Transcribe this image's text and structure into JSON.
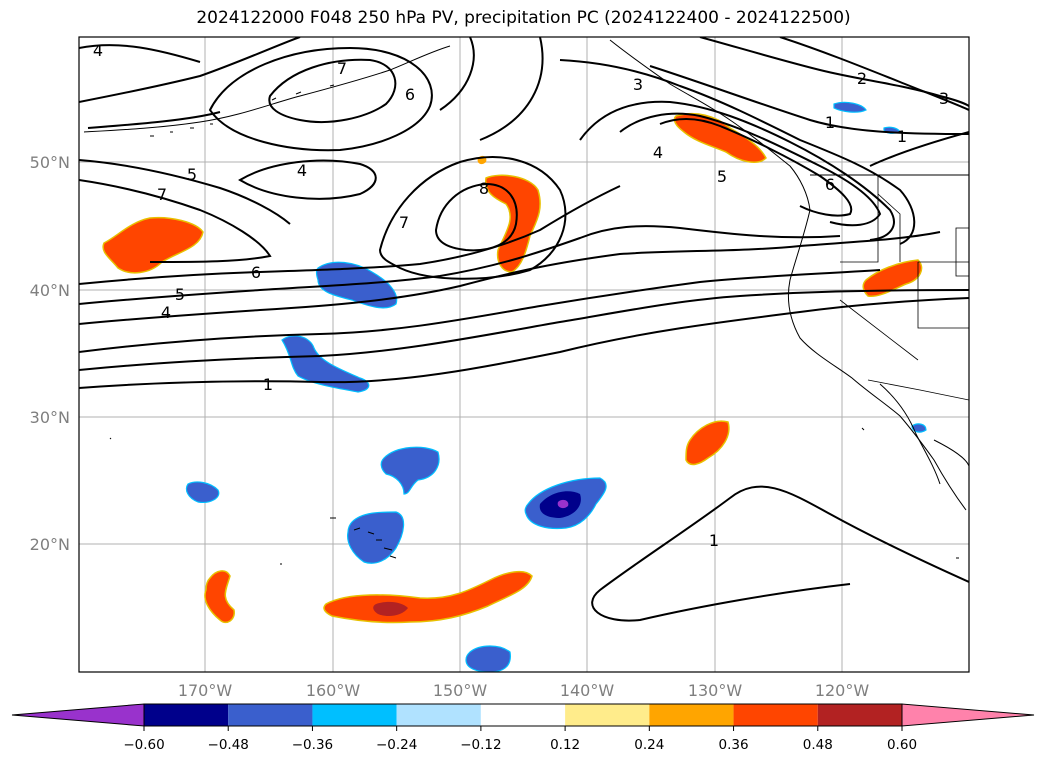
{
  "title": "2024122000 F048 250 hPa PV, precipitation PC (2024122400 - 2024122500)",
  "lat_labels": [
    "50°N",
    "40°N",
    "30°N",
    "20°N"
  ],
  "lon_labels": [
    "170°W",
    "160°W",
    "150°W",
    "140°W",
    "130°W",
    "120°W"
  ],
  "colorbar": {
    "ticks": [
      "−0.60",
      "−0.48",
      "−0.36",
      "−0.24",
      "−0.12",
      "0.12",
      "0.24",
      "0.36",
      "0.48",
      "0.60"
    ],
    "colors": [
      "#9932cc",
      "#00008b",
      "#3a5fcd",
      "#00bfff",
      "#b0e2ff",
      "#ffffff",
      "#ffec8b",
      "#ffa500",
      "#ff4500",
      "#b22222",
      "#ff82ab"
    ]
  },
  "contour_labels": [
    "4",
    "7",
    "6",
    "5",
    "7",
    "4",
    "6",
    "5",
    "4",
    "1",
    "7",
    "8",
    "3",
    "4",
    "5",
    "6",
    "2",
    "3",
    "1",
    "1",
    "1"
  ],
  "colors": {
    "contour": "#000000",
    "grid": "#b0b0b0",
    "coast": "#000000"
  }
}
